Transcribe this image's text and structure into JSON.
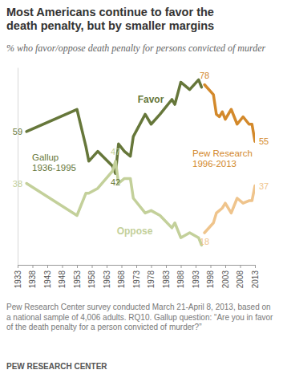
{
  "chart_data": {
    "type": "line",
    "title": "Most Americans continue to favor the death penalty, but by smaller margins",
    "subtitle": "% who favor/oppose death penalty for persons convicted of murder",
    "xlim": [
      1933,
      2013
    ],
    "xticks": [
      1933,
      1938,
      1943,
      1948,
      1953,
      1958,
      1963,
      1968,
      1973,
      1978,
      1983,
      1988,
      1993,
      1998,
      2003,
      2008,
      2013
    ],
    "ylim": [
      5,
      85
    ],
    "yticks": [],
    "tick_labels": "x",
    "data_labels": true,
    "series": [
      {
        "name": "Favor",
        "color": "#66773a",
        "x": [
          1936,
          1953,
          1956,
          1957,
          1960,
          1965,
          1966,
          1967,
          1969,
          1971,
          1972,
          1976,
          1978,
          1981,
          1985,
          1986,
          1988,
          1991,
          1994,
          1995
        ],
        "values": [
          59,
          68,
          53,
          47,
          51,
          45,
          42,
          54,
          51,
          49,
          57,
          66,
          62,
          66,
          72,
          70,
          79,
          76,
          80,
          77
        ],
        "value_labels": [
          "59",
          null,
          null,
          null,
          null,
          null,
          "42",
          null,
          null,
          null,
          null,
          null,
          null,
          null,
          null,
          null,
          null,
          null,
          null,
          null
        ]
      },
      {
        "name": "Oppose",
        "color": "#c3d09a",
        "x": [
          1936,
          1953,
          1956,
          1957,
          1960,
          1965,
          1966,
          1967,
          1969,
          1971,
          1972,
          1976,
          1978,
          1981,
          1985,
          1986,
          1988,
          1991,
          1994,
          1995
        ],
        "values": [
          38,
          25,
          34,
          34,
          36,
          43,
          47,
          38,
          40,
          40,
          32,
          26,
          27,
          25,
          20,
          22,
          16,
          18,
          16,
          13
        ],
        "value_labels": [
          "38",
          null,
          null,
          null,
          null,
          null,
          "47",
          null,
          null,
          null,
          null,
          null,
          null,
          null,
          null,
          null,
          null,
          null,
          null,
          null
        ]
      },
      {
        "color": "#d3892b",
        "x": [
          1996,
          1999,
          2000,
          2001,
          2002,
          2003,
          2005,
          2007,
          2009,
          2011,
          2012,
          2013
        ],
        "values": [
          78,
          74,
          66,
          65,
          67,
          64,
          68,
          62,
          65,
          62,
          62,
          55
        ],
        "value_labels": [
          "78",
          null,
          null,
          null,
          null,
          null,
          null,
          null,
          null,
          null,
          null,
          "55"
        ]
      },
      {
        "color": "#efc48c",
        "x": [
          1996,
          1999,
          2000,
          2001,
          2002,
          2003,
          2005,
          2007,
          2009,
          2011,
          2012,
          2013
        ],
        "values": [
          18,
          22,
          26,
          27,
          28,
          30,
          26,
          32,
          30,
          31,
          31,
          37
        ],
        "value_labels": [
          "18",
          null,
          null,
          null,
          null,
          null,
          null,
          null,
          null,
          null,
          null,
          "37"
        ]
      }
    ],
    "annotations": [
      "Gallup 1936-1995",
      "Pew Research 1996-2013"
    ],
    "notes": "Pew Research Center survey conducted March 21-April 8, 2013, based on a national sample of 4,006 adults. RQ10. Gallup question: “Are you in favor of the death penalty for a person convicted of murder?”",
    "source": "PEW RESEARCH CENTER"
  }
}
